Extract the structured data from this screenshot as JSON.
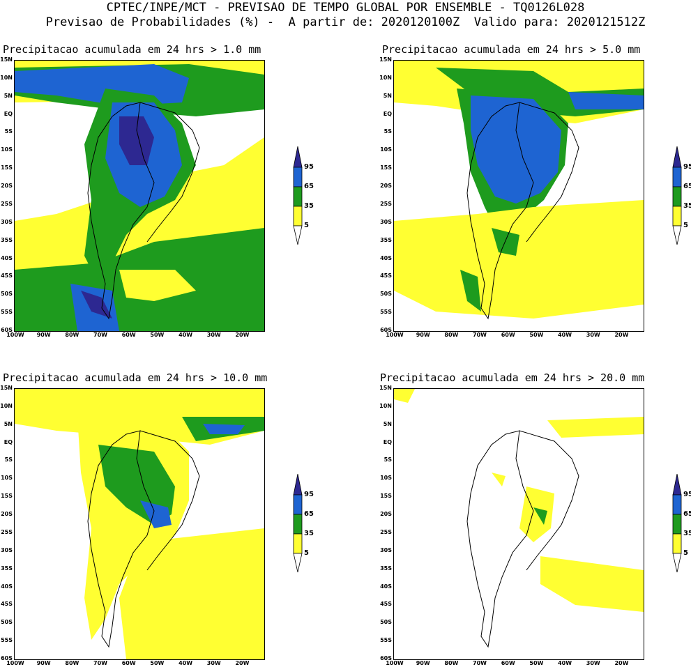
{
  "header": {
    "line1": "CPTEC/INPE/MCT - PREVISAO DE TEMPO GLOBAL POR ENSEMBLE - TQ0126L028",
    "line2": "Previsao de Probabilidades (%) -  A partir de: 2020120100Z  Valido para: 2020121512Z"
  },
  "axes": {
    "lat_labels": [
      "15N",
      "10N",
      "5N",
      "EQ",
      "5S",
      "10S",
      "15S",
      "20S",
      "25S",
      "30S",
      "35S",
      "40S",
      "45S",
      "50S",
      "55S",
      "60S"
    ],
    "lon_labels": [
      "100W",
      "90W",
      "80W",
      "70W",
      "60W",
      "50W",
      "40W",
      "30W",
      "20W"
    ]
  },
  "colorbar": {
    "levels": [
      "95",
      "65",
      "35",
      "5"
    ],
    "colors": {
      "c5": "#ffff32",
      "c35": "#1e9b1e",
      "c65": "#1e64d2",
      "c95": "#2d2891"
    }
  },
  "panels": [
    {
      "title": "Precipitacao acumulada em 24 hrs > 1.0 mm"
    },
    {
      "title": "Precipitacao acumulada em 24 hrs > 5.0 mm"
    },
    {
      "title": "Precipitacao acumulada em 24 hrs > 10.0 mm"
    },
    {
      "title": "Precipitacao acumulada em 24 hrs > 20.0 mm"
    }
  ]
}
